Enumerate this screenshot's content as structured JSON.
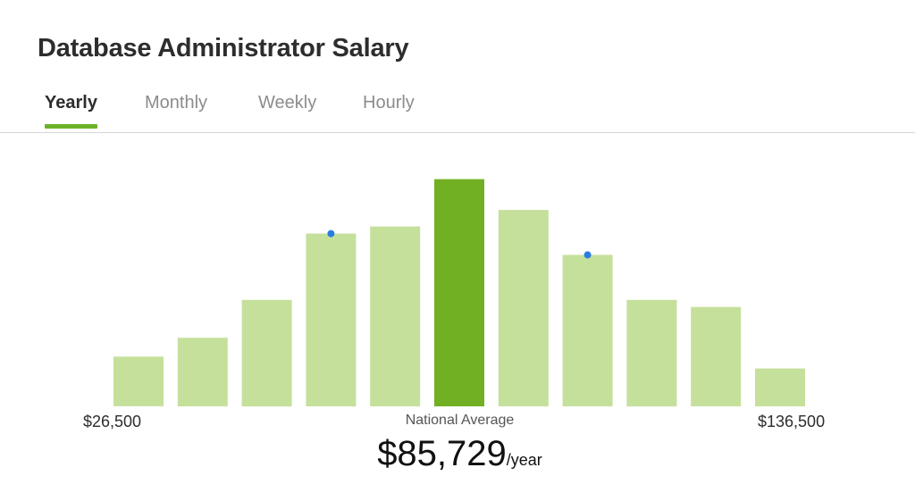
{
  "title": "Database Administrator Salary",
  "tabs": [
    {
      "label": "Yearly",
      "active": true
    },
    {
      "label": "Monthly",
      "active": false
    },
    {
      "label": "Weekly",
      "active": false
    },
    {
      "label": "Hourly",
      "active": false
    }
  ],
  "colors": {
    "bar": "#c5e09b",
    "bar_highlight": "#72b023",
    "marker": "#2a7de1",
    "tab_underline": "#6bb22a"
  },
  "chart_data": {
    "type": "bar",
    "title": "",
    "values": [
      21,
      29,
      45,
      73,
      76,
      96,
      83,
      64,
      45,
      42,
      16
    ],
    "highlight_index": 5,
    "marker_indices": [
      3,
      7
    ],
    "x_min_label": "$26,500",
    "x_max_label": "$136,500",
    "center_label": "National Average",
    "average_value": "$85,729",
    "average_unit": "/year"
  }
}
